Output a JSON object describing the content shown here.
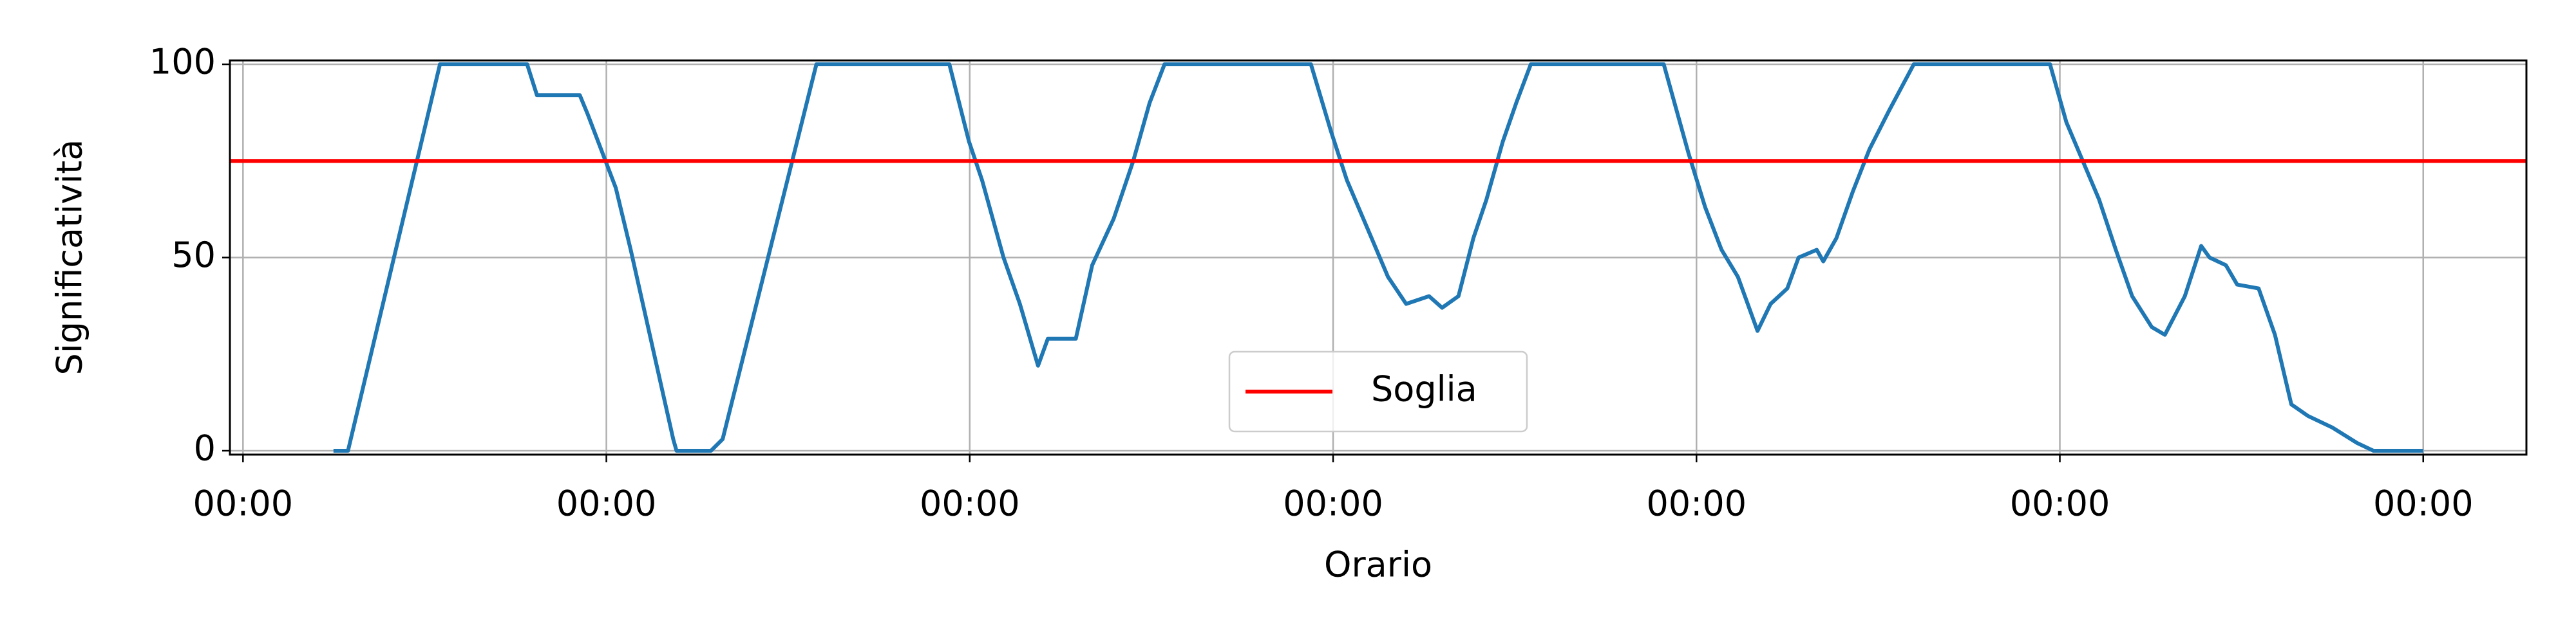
{
  "chart_data": {
    "type": "line",
    "x_label": "Orario",
    "y_label": "Significatività",
    "x": [
      0.249,
      0.289,
      0.542,
      0.782,
      0.809,
      0.927,
      0.949,
      1.026,
      1.067,
      1.184,
      1.193,
      1.288,
      1.32,
      1.578,
      1.944,
      1.998,
      2.034,
      2.093,
      2.138,
      2.188,
      2.215,
      2.292,
      2.337,
      2.396,
      2.45,
      2.495,
      2.536,
      2.939,
      2.993,
      3.038,
      3.106,
      3.151,
      3.201,
      3.264,
      3.3,
      3.345,
      3.386,
      3.422,
      3.467,
      3.504,
      3.544,
      3.91,
      3.978,
      4.024,
      4.069,
      4.114,
      4.168,
      4.204,
      4.25,
      4.281,
      4.331,
      4.349,
      4.385,
      4.43,
      4.476,
      4.53,
      4.598,
      4.973,
      5.018,
      5.063,
      5.108,
      5.154,
      5.199,
      5.253,
      5.289,
      5.344,
      5.389,
      5.412,
      5.457,
      5.488,
      5.547,
      5.592,
      5.637,
      5.683,
      5.75,
      5.818,
      5.863,
      6.0
    ],
    "series": [
      {
        "color": "#1f77b4",
        "values": [
          0,
          0,
          100,
          100,
          92,
          92,
          87,
          68,
          52,
          3,
          0,
          0,
          3,
          100,
          100,
          80,
          70,
          50,
          38,
          22,
          29,
          29,
          48,
          60,
          75,
          90,
          100,
          100,
          83,
          70,
          55,
          45,
          38,
          40,
          37,
          40,
          55,
          65,
          80,
          90,
          100,
          100,
          77,
          63,
          52,
          45,
          31,
          38,
          42,
          50,
          52,
          49,
          55,
          67,
          78,
          88,
          100,
          100,
          85,
          75,
          65,
          52,
          40,
          32,
          30,
          40,
          53,
          50,
          48,
          43,
          42,
          30,
          12,
          9,
          6,
          2,
          0,
          0
        ]
      }
    ],
    "threshold": {
      "name": "Soglia",
      "value": 75,
      "color": "#ff0000"
    },
    "xlim": [
      -0.036,
      6.284
    ],
    "xticks": [
      {
        "value": 0,
        "label": "00:00"
      },
      {
        "value": 1,
        "label": "00:00"
      },
      {
        "value": 2,
        "label": "00:00"
      },
      {
        "value": 3,
        "label": "00:00"
      },
      {
        "value": 4,
        "label": "00:00"
      },
      {
        "value": 5,
        "label": "00:00"
      },
      {
        "value": 6,
        "label": "00:00"
      }
    ],
    "ylim": [
      -1,
      101
    ],
    "yticks": [
      0,
      50,
      100
    ],
    "grid": true,
    "legend_position": "lower center"
  }
}
